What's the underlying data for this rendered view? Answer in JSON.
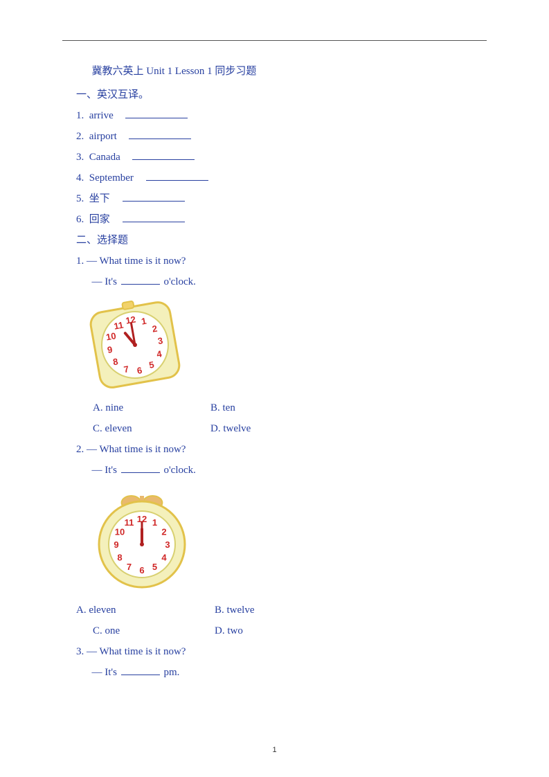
{
  "text_color": "#2840a0",
  "title": "冀教六英上 Unit 1 Lesson 1 同步习题",
  "section1": {
    "heading": "一、英汉互译。",
    "items": [
      {
        "n": "1.",
        "word": "arrive"
      },
      {
        "n": "2.",
        "word": "airport"
      },
      {
        "n": "3.",
        "word": "Canada"
      },
      {
        "n": "4.",
        "word": "September"
      },
      {
        "n": "5.",
        "word": "坐下"
      },
      {
        "n": "6.",
        "word": "回家"
      }
    ]
  },
  "section2": {
    "heading": "二、选择题",
    "q1": {
      "num": "1.",
      "line1": "— What time is it now?",
      "line2_a": "— It's",
      "line2_b": "o'clock.",
      "opts": {
        "A": "A. nine",
        "B": "B. ten",
        "C": "C. eleven",
        "D": "D. twelve"
      },
      "clock": {
        "rotate": -10,
        "body_fill": "#f4f0bb",
        "body_stroke": "#e2c24a",
        "face_fill": "#ffffff",
        "face_stroke": "#d8d070",
        "num_color": "#d02828",
        "hand_color": "#b02020",
        "hour_angle": 330,
        "minute_angle": 0,
        "button_fill": "#f2d26a"
      }
    },
    "q2": {
      "num": "2.",
      "line1": "— What time is it now?",
      "line2_a": "— It's",
      "line2_b": "o'clock.",
      "opts": {
        "A": "A. eleven",
        "B": "B. twelve",
        "C": "C. one",
        "D": "D. two"
      },
      "clock": {
        "rotate": 0,
        "body_fill": "#f4f0bb",
        "body_stroke": "#e2c24a",
        "face_fill": "#ffffff",
        "face_stroke": "#d8d070",
        "num_color": "#d02828",
        "hand_color": "#b02020",
        "hour_angle": 0,
        "minute_angle": 0,
        "bells_fill": "#e9b96e"
      }
    },
    "q3": {
      "num": "3.",
      "line1": "— What time is it now?",
      "line2_a": "— It's",
      "line2_b": "pm."
    }
  },
  "page_number": "1",
  "clock_numbers": [
    "12",
    "1",
    "2",
    "3",
    "4",
    "5",
    "6",
    "7",
    "8",
    "9",
    "10",
    "11"
  ]
}
